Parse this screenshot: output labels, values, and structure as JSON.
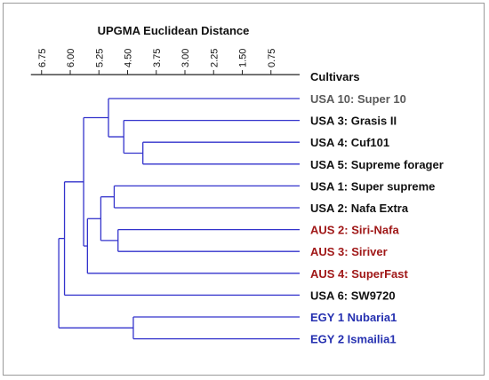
{
  "title": "UPGMA Euclidean Distance",
  "column_header": "Cultivars",
  "colors": {
    "branch": "#3333cc",
    "axis": "#222222",
    "usa_default": "#111111",
    "usa_10": "#5a5a5a",
    "aus": "#a01818",
    "egy": "#2530b0"
  },
  "axis": {
    "min": 0,
    "max": 6.75,
    "direction": "reversed",
    "ticks": [
      "6.75",
      "6.00",
      "5.25",
      "4.50",
      "3.75",
      "3.00",
      "2.25",
      "1.50",
      "0.75"
    ],
    "tick_values": [
      6.75,
      6.0,
      5.25,
      4.5,
      3.75,
      3.0,
      2.25,
      1.5,
      0.75
    ]
  },
  "leaves": [
    {
      "label": "USA 10: Super 10",
      "color_key": "usa_10"
    },
    {
      "label": "USA 3: Grasis II",
      "color_key": "usa_default"
    },
    {
      "label": "USA 4: Cuf101",
      "color_key": "usa_default"
    },
    {
      "label": "USA 5: Supreme forager",
      "color_key": "usa_default"
    },
    {
      "label": "USA 1: Super supreme",
      "color_key": "usa_default"
    },
    {
      "label": "USA 2: Nafa Extra",
      "color_key": "usa_default"
    },
    {
      "label": "AUS 2: Siri-Nafa",
      "color_key": "aus"
    },
    {
      "label": "AUS 3: Siriver",
      "color_key": "aus"
    },
    {
      "label": "AUS 4: SuperFast",
      "color_key": "aus"
    },
    {
      "label": "USA 6: SW9720",
      "color_key": "usa_default"
    },
    {
      "label": "EGY 1 Nubaria1",
      "color_key": "egy"
    },
    {
      "label": "EGY 2 Ismailia1",
      "color_key": "egy"
    }
  ],
  "merges": [
    {
      "a": "L2",
      "b": "L3",
      "height": 4.1
    },
    {
      "a": "L1",
      "b": "M0",
      "height": 4.6
    },
    {
      "a": "L0",
      "b": "M1",
      "height": 5.0
    },
    {
      "a": "L4",
      "b": "L5",
      "height": 4.85
    },
    {
      "a": "L6",
      "b": "L7",
      "height": 4.75
    },
    {
      "a": "M3",
      "b": "M4",
      "height": 5.2
    },
    {
      "a": "M5",
      "b": "L8",
      "height": 5.55
    },
    {
      "a": "M2",
      "b": "M6",
      "height": 5.65
    },
    {
      "a": "M7",
      "b": "L9",
      "height": 6.15
    },
    {
      "a": "L10",
      "b": "L11",
      "height": 4.35
    },
    {
      "a": "M8",
      "b": "M9",
      "height": 6.3
    }
  ]
}
